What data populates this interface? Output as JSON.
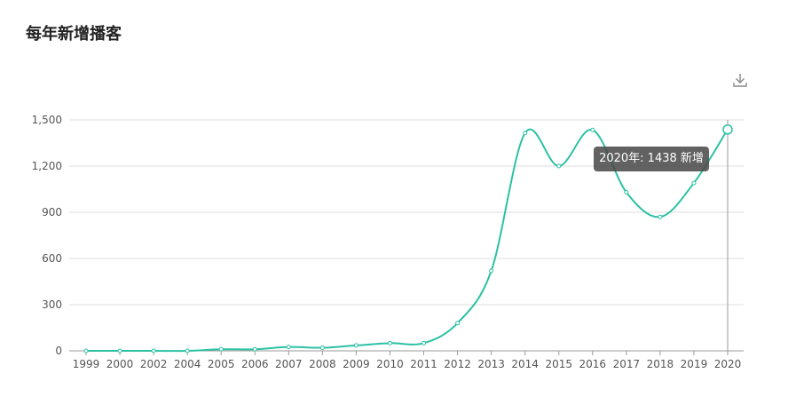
{
  "page_title": "每年新增播客",
  "icons": {
    "download": "download-icon"
  },
  "tooltip": {
    "text": "2020年: 1438 新增"
  },
  "colors": {
    "line": "#2cc1a4",
    "grid": "#dddddd",
    "axis": "#999999",
    "cursor": "#999999",
    "text": "#555555"
  },
  "chart_data": {
    "type": "line",
    "title": "每年新增播客",
    "x": [
      "1999",
      "2000",
      "2002",
      "2004",
      "2005",
      "2006",
      "2007",
      "2008",
      "2009",
      "2010",
      "2011",
      "2012",
      "2013",
      "2014",
      "2015",
      "2016",
      "2017",
      "2018",
      "2019",
      "2020"
    ],
    "series": [
      {
        "values": [
          0,
          0,
          0,
          0,
          10,
          10,
          25,
          20,
          35,
          50,
          50,
          180,
          520,
          1415,
          1200,
          1435,
          1030,
          870,
          1090,
          1438
        ]
      }
    ],
    "ylim": [
      0,
      1500
    ],
    "yticks": [
      0,
      300,
      600,
      900,
      1200,
      1500
    ],
    "ytick_labels": [
      "0",
      "300",
      "600",
      "900",
      "1,200",
      "1,500"
    ],
    "grid": true,
    "highlighted": "2020"
  }
}
